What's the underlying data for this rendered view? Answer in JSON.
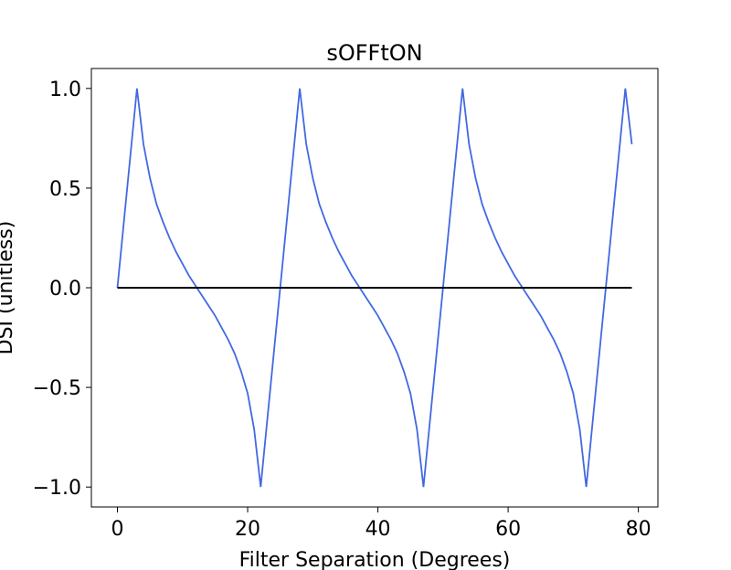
{
  "chart_data": {
    "type": "line",
    "title": "sOFFtON",
    "xlabel": "Filter Separation (Degrees)",
    "ylabel": "DSI (unitless)",
    "xlim": [
      -4,
      83
    ],
    "ylim": [
      -1.1,
      1.1
    ],
    "xticks": [
      0,
      20,
      40,
      60,
      80
    ],
    "yticks": [
      -1.0,
      -0.5,
      0.0,
      0.5,
      1.0
    ],
    "xtick_labels": [
      "0",
      "20",
      "40",
      "60",
      "80"
    ],
    "ytick_labels": [
      "−1.0",
      "−0.5",
      "0.0",
      "0.5",
      "1.0"
    ],
    "grid": false,
    "series": [
      {
        "color": "#4169e1",
        "x": [
          0,
          3,
          4,
          5,
          6,
          7,
          8,
          9,
          10,
          11,
          12,
          13,
          14,
          15,
          16,
          17,
          18,
          19,
          20,
          21,
          22,
          28,
          29,
          30,
          31,
          32,
          33,
          34,
          35,
          36,
          37,
          38,
          39,
          40,
          41,
          42,
          43,
          44,
          45,
          46,
          47,
          53,
          54,
          55,
          56,
          57,
          58,
          59,
          60,
          61,
          62,
          63,
          64,
          65,
          66,
          67,
          68,
          69,
          70,
          71,
          72,
          78,
          79
        ],
        "y": [
          0.0,
          1.0,
          0.72,
          0.55,
          0.42,
          0.33,
          0.25,
          0.18,
          0.12,
          0.06,
          0.01,
          -0.04,
          -0.09,
          -0.14,
          -0.2,
          -0.26,
          -0.33,
          -0.42,
          -0.53,
          -0.71,
          -1.0,
          1.0,
          0.72,
          0.55,
          0.42,
          0.33,
          0.25,
          0.18,
          0.12,
          0.06,
          0.01,
          -0.04,
          -0.09,
          -0.14,
          -0.2,
          -0.26,
          -0.33,
          -0.42,
          -0.53,
          -0.71,
          -1.0,
          1.0,
          0.72,
          0.55,
          0.42,
          0.33,
          0.25,
          0.18,
          0.12,
          0.06,
          0.01,
          -0.04,
          -0.09,
          -0.14,
          -0.2,
          -0.26,
          -0.33,
          -0.42,
          -0.53,
          -0.71,
          -1.0,
          1.0,
          0.72
        ]
      },
      {
        "color": "#000000",
        "x": [
          0,
          79
        ],
        "y": [
          0.0,
          0.0
        ]
      }
    ]
  }
}
